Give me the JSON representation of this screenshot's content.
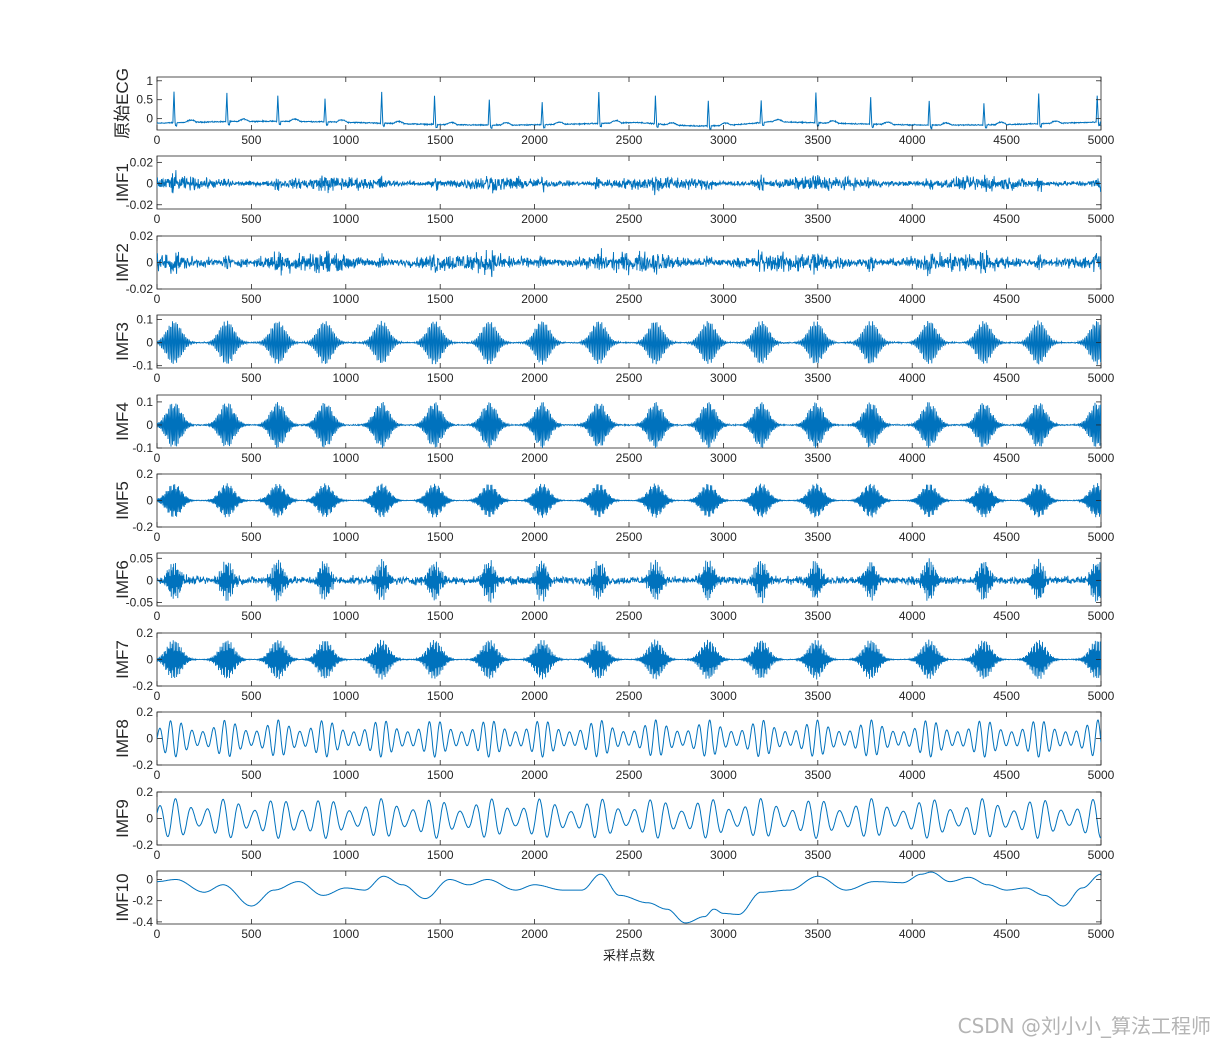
{
  "watermark": "CSDN @刘小小_算法工程师",
  "chart_data": {
    "type": "line",
    "xlabel": "采样点数",
    "xlim": [
      0,
      5000
    ],
    "x_ticks": [
      "0",
      "500",
      "1000",
      "1500",
      "2000",
      "2500",
      "3000",
      "3500",
      "4000",
      "4500",
      "5000"
    ],
    "line_color": "#0072BD",
    "beat_positions": [
      90,
      370,
      640,
      890,
      1190,
      1470,
      1760,
      2040,
      2340,
      2640,
      2920,
      3200,
      3490,
      3780,
      4090,
      4380,
      4670,
      4980
    ],
    "panels": [
      {
        "ylabel": "原始ECG",
        "ylim": [
          -0.3,
          1.1
        ],
        "yticks": [
          {
            "v": 1,
            "t": "1"
          },
          {
            "v": 0.5,
            "t": "0.5"
          },
          {
            "v": 0,
            "t": "0"
          }
        ],
        "kind": "ecg"
      },
      {
        "ylabel": "IMF1",
        "ylim": [
          -0.024,
          0.026
        ],
        "yticks": [
          {
            "v": 0.02,
            "t": "0.02"
          },
          {
            "v": 0,
            "t": "0"
          },
          {
            "v": -0.02,
            "t": "-0.02"
          }
        ],
        "kind": "noise",
        "amplitude": 0.008
      },
      {
        "ylabel": "IMF2",
        "ylim": [
          -0.02,
          0.02
        ],
        "yticks": [
          {
            "v": 0.02,
            "t": "0.02"
          },
          {
            "v": 0,
            "t": "0"
          },
          {
            "v": -0.02,
            "t": "-0.02"
          }
        ],
        "kind": "noise",
        "amplitude": 0.009
      },
      {
        "ylabel": "IMF3",
        "ylim": [
          -0.11,
          0.12
        ],
        "yticks": [
          {
            "v": 0.1,
            "t": "0.1"
          },
          {
            "v": 0,
            "t": "0"
          },
          {
            "v": -0.1,
            "t": "-0.1"
          }
        ],
        "kind": "burst",
        "amplitude": 0.095
      },
      {
        "ylabel": "IMF4",
        "ylim": [
          -0.1,
          0.13
        ],
        "yticks": [
          {
            "v": 0.1,
            "t": "0.1"
          },
          {
            "v": 0,
            "t": "0"
          },
          {
            "v": -0.1,
            "t": "-0.1"
          }
        ],
        "kind": "burst",
        "amplitude": 0.1
      },
      {
        "ylabel": "IMF5",
        "ylim": [
          -0.2,
          0.2
        ],
        "yticks": [
          {
            "v": 0.2,
            "t": "0.2"
          },
          {
            "v": 0,
            "t": "0"
          },
          {
            "v": -0.2,
            "t": "-0.2"
          }
        ],
        "kind": "burst",
        "amplitude": 0.13
      },
      {
        "ylabel": "IMF6",
        "ylim": [
          -0.058,
          0.062
        ],
        "yticks": [
          {
            "v": 0.05,
            "t": "0.05"
          },
          {
            "v": 0,
            "t": "0"
          },
          {
            "v": -0.05,
            "t": "-0.05"
          }
        ],
        "kind": "noiseburst",
        "amplitude": 0.045
      },
      {
        "ylabel": "IMF7",
        "ylim": [
          -0.2,
          0.2
        ],
        "yticks": [
          {
            "v": 0.2,
            "t": "0.2"
          },
          {
            "v": 0,
            "t": "0"
          },
          {
            "v": -0.2,
            "t": "-0.2"
          }
        ],
        "kind": "burst",
        "amplitude": 0.15
      },
      {
        "ylabel": "IMF8",
        "ylim": [
          -0.2,
          0.2
        ],
        "yticks": [
          {
            "v": 0.2,
            "t": "0.2"
          },
          {
            "v": 0,
            "t": "0"
          },
          {
            "v": -0.2,
            "t": "-0.2"
          }
        ],
        "kind": "wave",
        "amplitude": 0.14
      },
      {
        "ylabel": "IMF9",
        "ylim": [
          -0.2,
          0.2
        ],
        "yticks": [
          {
            "v": 0.2,
            "t": "0.2"
          },
          {
            "v": 0,
            "t": "0"
          },
          {
            "v": -0.2,
            "t": "-0.2"
          }
        ],
        "kind": "wave2",
        "amplitude": 0.15
      },
      {
        "ylabel": "IMF10",
        "ylim": [
          -0.42,
          0.08
        ],
        "yticks": [
          {
            "v": 0,
            "t": "0"
          },
          {
            "v": -0.2,
            "t": "-0.2"
          },
          {
            "v": -0.4,
            "t": "-0.4"
          }
        ],
        "kind": "trend",
        "trend_points": [
          [
            0,
            -0.02
          ],
          [
            100,
            0.0
          ],
          [
            250,
            -0.12
          ],
          [
            350,
            -0.05
          ],
          [
            500,
            -0.25
          ],
          [
            620,
            -0.1
          ],
          [
            750,
            -0.02
          ],
          [
            880,
            -0.15
          ],
          [
            1000,
            -0.08
          ],
          [
            1100,
            -0.1
          ],
          [
            1200,
            0.03
          ],
          [
            1300,
            -0.05
          ],
          [
            1420,
            -0.18
          ],
          [
            1550,
            0.0
          ],
          [
            1650,
            -0.05
          ],
          [
            1750,
            0.0
          ],
          [
            1900,
            -0.1
          ],
          [
            2000,
            -0.05
          ],
          [
            2150,
            -0.1
          ],
          [
            2250,
            -0.1
          ],
          [
            2350,
            0.05
          ],
          [
            2450,
            -0.15
          ],
          [
            2600,
            -0.22
          ],
          [
            2700,
            -0.28
          ],
          [
            2800,
            -0.41
          ],
          [
            2900,
            -0.35
          ],
          [
            2950,
            -0.28
          ],
          [
            3000,
            -0.32
          ],
          [
            3080,
            -0.33
          ],
          [
            3200,
            -0.12
          ],
          [
            3350,
            -0.1
          ],
          [
            3500,
            0.03
          ],
          [
            3650,
            -0.1
          ],
          [
            3800,
            -0.02
          ],
          [
            3950,
            -0.03
          ],
          [
            4050,
            0.05
          ],
          [
            4100,
            0.07
          ],
          [
            4200,
            -0.02
          ],
          [
            4300,
            0.02
          ],
          [
            4400,
            -0.05
          ],
          [
            4500,
            -0.1
          ],
          [
            4600,
            -0.08
          ],
          [
            4700,
            -0.15
          ],
          [
            4800,
            -0.25
          ],
          [
            4900,
            -0.08
          ],
          [
            5000,
            0.05
          ]
        ]
      }
    ]
  }
}
